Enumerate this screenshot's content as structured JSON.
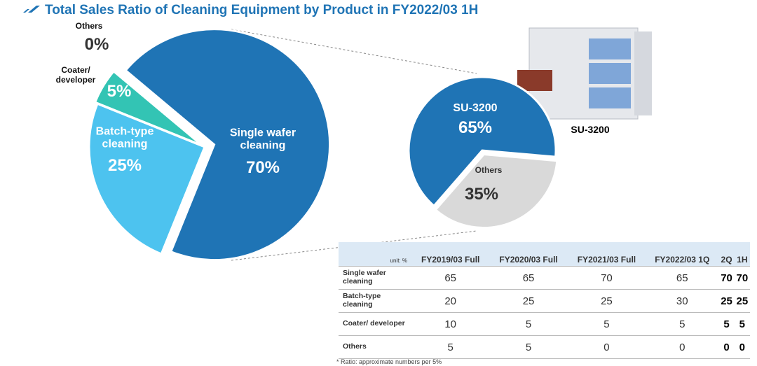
{
  "title": "Total  Sales Ratio of Cleaning Equipment by Product in FY2022/03 1H",
  "chart_data": [
    {
      "type": "pie",
      "categories": [
        "Single wafer cleaning",
        "Batch-type cleaning",
        "Coater/ developer",
        "Others"
      ],
      "values": [
        70,
        25,
        5,
        0
      ],
      "value_labels": [
        "70%",
        "25%",
        "5%",
        "0%"
      ],
      "colors": [
        "#1f74b5",
        "#4dc3ef",
        "#33c4b4",
        "#9e9e9e"
      ]
    },
    {
      "type": "pie",
      "categories": [
        "SU-3200",
        "Others"
      ],
      "values": [
        65,
        35
      ],
      "value_labels": [
        "65%",
        "35%"
      ],
      "colors": [
        "#1f74b5",
        "#d9d9d9"
      ]
    }
  ],
  "product_label": "SU-3200",
  "table": {
    "header": [
      "unit: %",
      "FY2019/03 Full",
      "FY2020/03 Full",
      "FY2021/03 Full",
      "FY2022/03 1Q",
      "2Q",
      "1H"
    ],
    "rows": [
      [
        "Single wafer cleaning",
        65,
        65,
        70,
        65,
        70,
        70
      ],
      [
        "Batch-type cleaning",
        20,
        25,
        25,
        30,
        25,
        25
      ],
      [
        "Coater/ developer",
        10,
        5,
        5,
        5,
        5,
        5
      ],
      [
        "Others",
        5,
        5,
        0,
        0,
        0,
        0
      ]
    ]
  },
  "footnote": "* Ratio: approximate numbers per 5%"
}
